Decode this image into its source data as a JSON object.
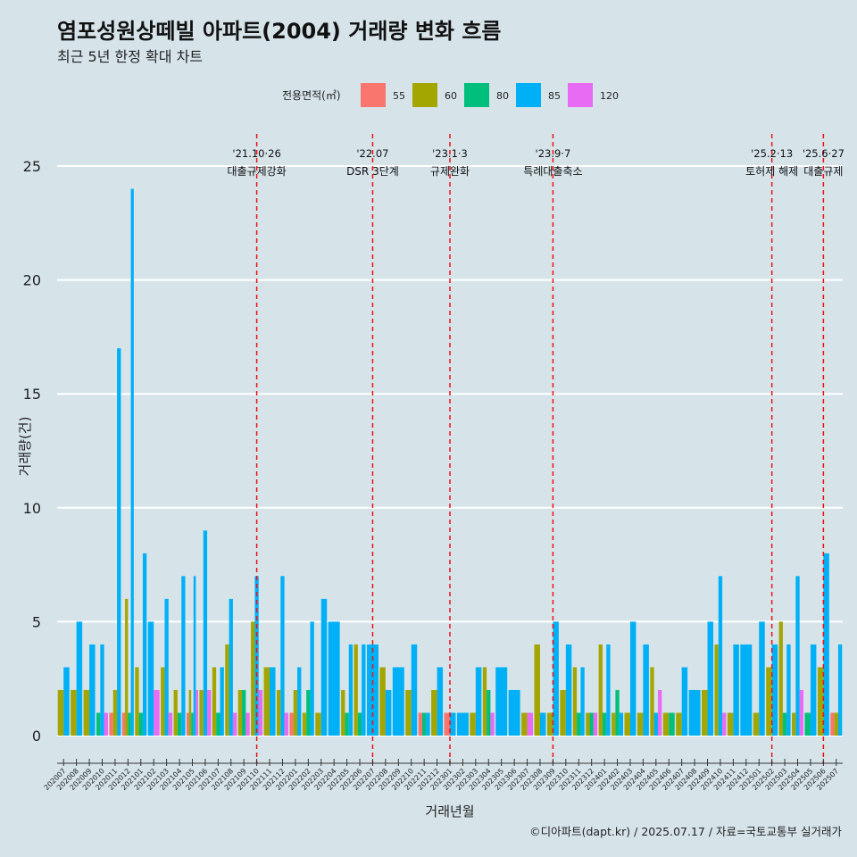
{
  "chart_data": {
    "type": "bar",
    "title": "염포성원상떼빌 아파트(2004) 거래량 변화 흐름",
    "subtitle": "최근 5년 한정 확대 차트",
    "xlabel": "거래년월",
    "ylabel": "거래량(건)",
    "ylim": [
      0,
      25
    ],
    "yticks": [
      0,
      5,
      10,
      15,
      20,
      25
    ],
    "legend_title": "전용면적(㎡)",
    "legend_position": "top",
    "caption": "©디아파트(dapt.kr) / 2025.07.17 / 자료=국토교통부 실거래가",
    "colors": {
      "55": "#f8766d",
      "60": "#a3a500",
      "80": "#00bf7d",
      "85": "#00b0f6",
      "120": "#e76bf3"
    },
    "series": [
      {
        "name": "55"
      },
      {
        "name": "60"
      },
      {
        "name": "80"
      },
      {
        "name": "85"
      },
      {
        "name": "120"
      }
    ],
    "categories": [
      "202007",
      "202008",
      "202009",
      "202010",
      "202011",
      "202012",
      "202101",
      "202102",
      "202103",
      "202104",
      "202105",
      "202106",
      "202107",
      "202108",
      "202109",
      "202110",
      "202111",
      "202112",
      "202201",
      "202202",
      "202203",
      "202204",
      "202205",
      "202206",
      "202207",
      "202208",
      "202209",
      "202210",
      "202211",
      "202212",
      "202301",
      "202302",
      "202303",
      "202304",
      "202305",
      "202306",
      "202307",
      "202308",
      "202309",
      "202310",
      "202311",
      "202312",
      "202401",
      "202402",
      "202403",
      "202404",
      "202405",
      "202406",
      "202407",
      "202408",
      "202409",
      "202410",
      "202411",
      "202412",
      "202501",
      "202502",
      "202503",
      "202504",
      "202505",
      "202506",
      "202507"
    ],
    "data": [
      {
        "month": "202007",
        "bars": [
          {
            "size": "60",
            "value": 2
          },
          {
            "size": "85",
            "value": 3
          }
        ]
      },
      {
        "month": "202008",
        "bars": [
          {
            "size": "60",
            "value": 2
          },
          {
            "size": "85",
            "value": 5
          }
        ]
      },
      {
        "month": "202009",
        "bars": [
          {
            "size": "60",
            "value": 2
          },
          {
            "size": "85",
            "value": 4
          }
        ]
      },
      {
        "month": "202010",
        "bars": [
          {
            "size": "80",
            "value": 1
          },
          {
            "size": "85",
            "value": 4
          },
          {
            "size": "120",
            "value": 1
          }
        ]
      },
      {
        "month": "202011",
        "bars": [
          {
            "size": "55",
            "value": 1
          },
          {
            "size": "60",
            "value": 2
          },
          {
            "size": "85",
            "value": 17
          }
        ]
      },
      {
        "month": "202012",
        "bars": [
          {
            "size": "55",
            "value": 1
          },
          {
            "size": "60",
            "value": 6
          },
          {
            "size": "80",
            "value": 1
          },
          {
            "size": "85",
            "value": 24
          }
        ]
      },
      {
        "month": "202101",
        "bars": [
          {
            "size": "60",
            "value": 3
          },
          {
            "size": "80",
            "value": 1
          },
          {
            "size": "85",
            "value": 8
          }
        ]
      },
      {
        "month": "202102",
        "bars": [
          {
            "size": "85",
            "value": 5
          },
          {
            "size": "120",
            "value": 2
          }
        ]
      },
      {
        "month": "202103",
        "bars": [
          {
            "size": "60",
            "value": 3
          },
          {
            "size": "85",
            "value": 6
          },
          {
            "size": "120",
            "value": 1
          }
        ]
      },
      {
        "month": "202104",
        "bars": [
          {
            "size": "60",
            "value": 2
          },
          {
            "size": "80",
            "value": 1
          },
          {
            "size": "85",
            "value": 7
          }
        ]
      },
      {
        "month": "202105",
        "bars": [
          {
            "size": "55",
            "value": 1
          },
          {
            "size": "60",
            "value": 2
          },
          {
            "size": "80",
            "value": 1
          },
          {
            "size": "85",
            "value": 7
          },
          {
            "size": "120",
            "value": 2
          }
        ]
      },
      {
        "month": "202106",
        "bars": [
          {
            "size": "60",
            "value": 2
          },
          {
            "size": "85",
            "value": 9
          },
          {
            "size": "120",
            "value": 2
          }
        ]
      },
      {
        "month": "202107",
        "bars": [
          {
            "size": "60",
            "value": 3
          },
          {
            "size": "80",
            "value": 1
          },
          {
            "size": "85",
            "value": 3
          }
        ]
      },
      {
        "month": "202108",
        "bars": [
          {
            "size": "60",
            "value": 4
          },
          {
            "size": "85",
            "value": 6
          },
          {
            "size": "120",
            "value": 1
          }
        ]
      },
      {
        "month": "202109",
        "bars": [
          {
            "size": "60",
            "value": 2
          },
          {
            "size": "80",
            "value": 2
          },
          {
            "size": "120",
            "value": 1
          }
        ]
      },
      {
        "month": "202110",
        "bars": [
          {
            "size": "60",
            "value": 5
          },
          {
            "size": "85",
            "value": 7
          },
          {
            "size": "120",
            "value": 2
          }
        ]
      },
      {
        "month": "202111",
        "bars": [
          {
            "size": "60",
            "value": 3
          },
          {
            "size": "85",
            "value": 3
          }
        ]
      },
      {
        "month": "202112",
        "bars": [
          {
            "size": "60",
            "value": 2
          },
          {
            "size": "85",
            "value": 7
          },
          {
            "size": "120",
            "value": 1
          }
        ]
      },
      {
        "month": "202201",
        "bars": [
          {
            "size": "55",
            "value": 1
          },
          {
            "size": "60",
            "value": 2
          },
          {
            "size": "85",
            "value": 3
          }
        ]
      },
      {
        "month": "202202",
        "bars": [
          {
            "size": "60",
            "value": 1
          },
          {
            "size": "80",
            "value": 2
          },
          {
            "size": "85",
            "value": 5
          }
        ]
      },
      {
        "month": "202203",
        "bars": [
          {
            "size": "60",
            "value": 1
          },
          {
            "size": "85",
            "value": 6
          }
        ]
      },
      {
        "month": "202204",
        "bars": [
          {
            "size": "85",
            "value": 5
          }
        ]
      },
      {
        "month": "202205",
        "bars": [
          {
            "size": "60",
            "value": 2
          },
          {
            "size": "80",
            "value": 1
          },
          {
            "size": "85",
            "value": 4
          }
        ]
      },
      {
        "month": "202206",
        "bars": [
          {
            "size": "60",
            "value": 4
          },
          {
            "size": "80",
            "value": 1
          },
          {
            "size": "85",
            "value": 4
          }
        ]
      },
      {
        "month": "202207",
        "bars": [
          {
            "size": "85",
            "value": 4
          }
        ]
      },
      {
        "month": "202208",
        "bars": [
          {
            "size": "60",
            "value": 3
          },
          {
            "size": "85",
            "value": 2
          }
        ]
      },
      {
        "month": "202209",
        "bars": [
          {
            "size": "85",
            "value": 3
          }
        ]
      },
      {
        "month": "202210",
        "bars": [
          {
            "size": "60",
            "value": 2
          },
          {
            "size": "85",
            "value": 4
          }
        ]
      },
      {
        "month": "202211",
        "bars": [
          {
            "size": "55",
            "value": 1
          },
          {
            "size": "80",
            "value": 1
          },
          {
            "size": "85",
            "value": 1
          }
        ]
      },
      {
        "month": "202212",
        "bars": [
          {
            "size": "60",
            "value": 2
          },
          {
            "size": "85",
            "value": 3
          }
        ]
      },
      {
        "month": "202301",
        "bars": [
          {
            "size": "55",
            "value": 1
          },
          {
            "size": "85",
            "value": 1
          }
        ]
      },
      {
        "month": "202302",
        "bars": [
          {
            "size": "85",
            "value": 1
          }
        ]
      },
      {
        "month": "202303",
        "bars": [
          {
            "size": "60",
            "value": 1
          },
          {
            "size": "85",
            "value": 3
          }
        ]
      },
      {
        "month": "202304",
        "bars": [
          {
            "size": "60",
            "value": 3
          },
          {
            "size": "80",
            "value": 2
          },
          {
            "size": "120",
            "value": 1
          }
        ]
      },
      {
        "month": "202305",
        "bars": [
          {
            "size": "85",
            "value": 3
          }
        ]
      },
      {
        "month": "202306",
        "bars": [
          {
            "size": "85",
            "value": 2
          }
        ]
      },
      {
        "month": "202307",
        "bars": [
          {
            "size": "60",
            "value": 1
          },
          {
            "size": "120",
            "value": 1
          }
        ]
      },
      {
        "month": "202308",
        "bars": [
          {
            "size": "60",
            "value": 4
          },
          {
            "size": "85",
            "value": 1
          }
        ]
      },
      {
        "month": "202309",
        "bars": [
          {
            "size": "60",
            "value": 1
          },
          {
            "size": "85",
            "value": 5
          }
        ]
      },
      {
        "month": "202310",
        "bars": [
          {
            "size": "60",
            "value": 2
          },
          {
            "size": "85",
            "value": 4
          }
        ]
      },
      {
        "month": "202311",
        "bars": [
          {
            "size": "60",
            "value": 3
          },
          {
            "size": "80",
            "value": 1
          },
          {
            "size": "85",
            "value": 3
          }
        ]
      },
      {
        "month": "202312",
        "bars": [
          {
            "size": "60",
            "value": 1
          },
          {
            "size": "80",
            "value": 1
          },
          {
            "size": "120",
            "value": 1
          }
        ]
      },
      {
        "month": "202401",
        "bars": [
          {
            "size": "60",
            "value": 4
          },
          {
            "size": "80",
            "value": 1
          },
          {
            "size": "85",
            "value": 4
          }
        ]
      },
      {
        "month": "202402",
        "bars": [
          {
            "size": "60",
            "value": 1
          },
          {
            "size": "80",
            "value": 2
          },
          {
            "size": "85",
            "value": 1
          }
        ]
      },
      {
        "month": "202403",
        "bars": [
          {
            "size": "60",
            "value": 1
          },
          {
            "size": "85",
            "value": 5
          }
        ]
      },
      {
        "month": "202404",
        "bars": [
          {
            "size": "60",
            "value": 1
          },
          {
            "size": "85",
            "value": 4
          }
        ]
      },
      {
        "month": "202405",
        "bars": [
          {
            "size": "60",
            "value": 3
          },
          {
            "size": "85",
            "value": 1
          },
          {
            "size": "120",
            "value": 2
          }
        ]
      },
      {
        "month": "202406",
        "bars": [
          {
            "size": "60",
            "value": 1
          },
          {
            "size": "80",
            "value": 1
          }
        ]
      },
      {
        "month": "202407",
        "bars": [
          {
            "size": "60",
            "value": 1
          },
          {
            "size": "85",
            "value": 3
          }
        ]
      },
      {
        "month": "202408",
        "bars": [
          {
            "size": "85",
            "value": 2
          }
        ]
      },
      {
        "month": "202409",
        "bars": [
          {
            "size": "60",
            "value": 2
          },
          {
            "size": "85",
            "value": 5
          }
        ]
      },
      {
        "month": "202410",
        "bars": [
          {
            "size": "60",
            "value": 4
          },
          {
            "size": "85",
            "value": 7
          },
          {
            "size": "120",
            "value": 1
          }
        ]
      },
      {
        "month": "202411",
        "bars": [
          {
            "size": "60",
            "value": 1
          },
          {
            "size": "85",
            "value": 4
          }
        ]
      },
      {
        "month": "202412",
        "bars": [
          {
            "size": "85",
            "value": 4
          }
        ]
      },
      {
        "month": "202501",
        "bars": [
          {
            "size": "60",
            "value": 1
          },
          {
            "size": "85",
            "value": 5
          }
        ]
      },
      {
        "month": "202502",
        "bars": [
          {
            "size": "60",
            "value": 3
          },
          {
            "size": "85",
            "value": 4
          }
        ]
      },
      {
        "month": "202503",
        "bars": [
          {
            "size": "60",
            "value": 5
          },
          {
            "size": "80",
            "value": 1
          },
          {
            "size": "85",
            "value": 4
          }
        ]
      },
      {
        "month": "202504",
        "bars": [
          {
            "size": "60",
            "value": 1
          },
          {
            "size": "85",
            "value": 7
          },
          {
            "size": "120",
            "value": 2
          }
        ]
      },
      {
        "month": "202505",
        "bars": [
          {
            "size": "80",
            "value": 1
          },
          {
            "size": "85",
            "value": 4
          }
        ]
      },
      {
        "month": "202506",
        "bars": [
          {
            "size": "60",
            "value": 3
          },
          {
            "size": "85",
            "value": 8
          }
        ]
      },
      {
        "month": "202507",
        "bars": [
          {
            "size": "55",
            "value": 1
          },
          {
            "size": "60",
            "value": 1
          },
          {
            "size": "85",
            "value": 4
          }
        ]
      }
    ],
    "annotations": [
      {
        "month": "202110",
        "date": "'21.10·26",
        "label": "대출규제강화"
      },
      {
        "month": "202207",
        "date": "'22.07",
        "label": "DSR 3단계"
      },
      {
        "month": "202301",
        "date": "'23.1·3",
        "label": "규제완화"
      },
      {
        "month": "202309",
        "date": "'23.9·7",
        "label": "특례대출축소"
      },
      {
        "month": "202502",
        "date": "'25.2·13",
        "label": "토허제 해제"
      },
      {
        "month": "202506",
        "date": "'25.6·27",
        "label": "대출규제"
      }
    ]
  }
}
